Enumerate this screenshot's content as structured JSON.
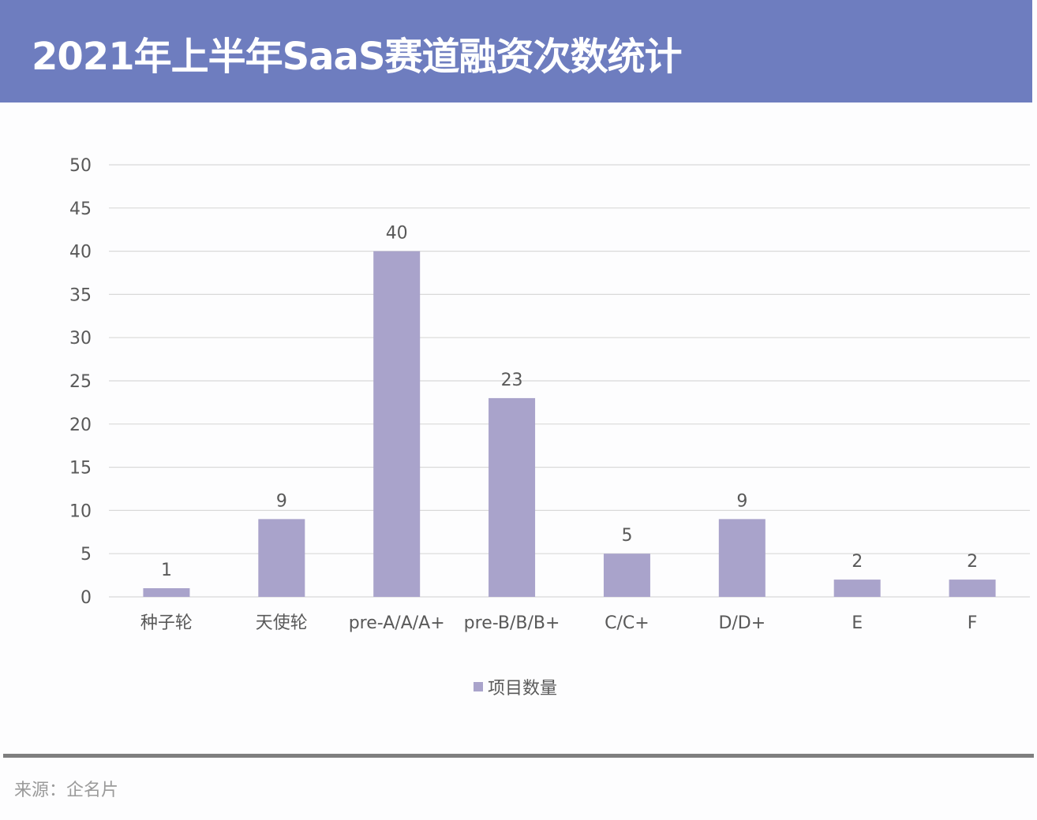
{
  "header": {
    "title": "2021年上半年SaaS赛道融资次数统计"
  },
  "chart_data": {
    "type": "bar",
    "categories": [
      "种子轮",
      "天使轮",
      "pre-A/A/A+",
      "pre-B/B/B+",
      "C/C+",
      "D/D+",
      "E",
      "F"
    ],
    "series": [
      {
        "name": "项目数量",
        "values": [
          1,
          9,
          40,
          23,
          5,
          9,
          2,
          2
        ]
      }
    ],
    "ylim": [
      0,
      50
    ],
    "yticks": [
      0,
      5,
      10,
      15,
      20,
      25,
      30,
      35,
      40,
      45,
      50
    ],
    "grid": true,
    "legend": "bottom",
    "data_labels": true,
    "colors": {
      "bar": "#a9a3cb",
      "grid": "#d9d9d9",
      "text": "#595959"
    }
  },
  "footer": {
    "source": "来源：企名片"
  }
}
